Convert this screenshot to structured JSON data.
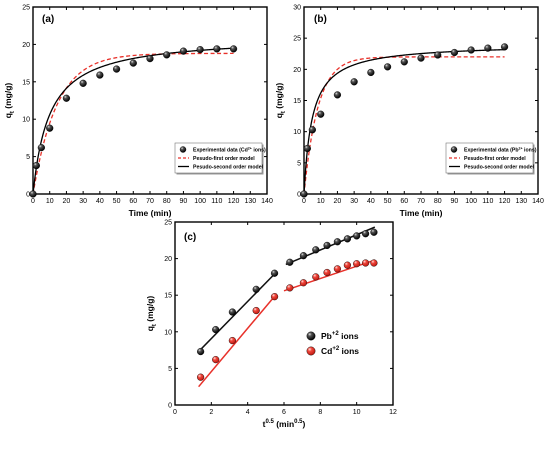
{
  "chart_data": [
    {
      "panel_label": "(a)",
      "type": "scatter",
      "xlabel": "Time (min)",
      "ylabel": "q_t (mg/g)",
      "ylabel_main": "q",
      "ylabel_sub": "t",
      "ylabel_unit": " (mg/g)",
      "xlim": [
        0,
        140
      ],
      "ylim": [
        0,
        25
      ],
      "xticks": [
        0,
        10,
        20,
        30,
        40,
        50,
        60,
        70,
        80,
        90,
        100,
        110,
        120,
        130,
        140
      ],
      "yticks": [
        0,
        5,
        10,
        15,
        20,
        25
      ],
      "legend_position": "bottom-right",
      "series": [
        {
          "name": "Experimental data (Cd2+ ions)",
          "name_main": "Experimental data (Cd",
          "name_sup": "2+",
          "name_tail": " ions)",
          "kind": "markers",
          "color": "#000000",
          "x": [
            0,
            2,
            5,
            10,
            20,
            30,
            40,
            50,
            60,
            70,
            80,
            90,
            100,
            110,
            120
          ],
          "y": [
            0,
            3.8,
            6.2,
            8.8,
            12.8,
            14.8,
            15.9,
            16.7,
            17.5,
            18.1,
            18.6,
            19.1,
            19.3,
            19.4,
            19.4
          ]
        },
        {
          "name": "Pesudo-first order model",
          "kind": "dashed",
          "color": "#e8312a",
          "qe": 18.8,
          "k1": 0.07
        },
        {
          "name": "Pesudo-second order model",
          "kind": "solid",
          "color": "#000000",
          "qe": 21.1,
          "k2": 0.0048
        }
      ]
    },
    {
      "panel_label": "(b)",
      "type": "scatter",
      "xlabel": "Time (min)",
      "ylabel": "q_t (mg/g)",
      "ylabel_main": "q",
      "ylabel_sub": "t",
      "ylabel_unit": " (mg/g)",
      "xlim": [
        0,
        140
      ],
      "ylim": [
        0,
        30
      ],
      "xticks": [
        0,
        10,
        20,
        30,
        40,
        50,
        60,
        70,
        80,
        90,
        100,
        110,
        120,
        130,
        140
      ],
      "yticks": [
        0,
        5,
        10,
        15,
        20,
        25,
        30
      ],
      "legend_position": "bottom-right",
      "series": [
        {
          "name": "Experimental data (Pb2+ ions)",
          "name_main": "Experimental data (Pb",
          "name_sup": "2+",
          "name_tail": " ions)",
          "kind": "markers",
          "color": "#000000",
          "x": [
            0,
            2,
            5,
            10,
            20,
            30,
            40,
            50,
            60,
            70,
            80,
            90,
            100,
            110,
            120
          ],
          "y": [
            0,
            7.3,
            10.3,
            12.8,
            15.9,
            18.0,
            19.5,
            20.4,
            21.2,
            21.8,
            22.3,
            22.7,
            23.1,
            23.4,
            23.6
          ]
        },
        {
          "name": "Pesudo-first order model",
          "kind": "dashed",
          "color": "#e8312a",
          "qe": 22.0,
          "k1": 0.12
        },
        {
          "name": "Pesudo-second order model",
          "kind": "solid",
          "color": "#000000",
          "qe": 24.1,
          "k2": 0.0085
        }
      ]
    },
    {
      "panel_label": "(c)",
      "type": "scatter",
      "xlabel": "t^0.5 (min^0.5)",
      "xlabel_a": "t",
      "xlabel_sup1": "0.5",
      "xlabel_b": " (min",
      "xlabel_sup2": "0.5",
      "xlabel_c": ")",
      "ylabel": "q_t (mg/g)",
      "ylabel_main": "q",
      "ylabel_sub": "t",
      "ylabel_unit": " (mg/g)",
      "xlim": [
        0,
        12
      ],
      "ylim": [
        0,
        25
      ],
      "xticks": [
        0,
        2,
        4,
        6,
        8,
        10,
        12
      ],
      "yticks": [
        0,
        5,
        10,
        15,
        20,
        25
      ],
      "legend_position": "bottom-right",
      "series": [
        {
          "name": "Pb+2 ions",
          "name_main": "Pb",
          "name_sup": "+2",
          "name_tail": " ions",
          "kind": "markers",
          "color": "#111111",
          "x": [
            1.41,
            2.24,
            3.16,
            4.47,
            5.48,
            6.32,
            7.07,
            7.75,
            8.37,
            8.94,
            9.49,
            10.0,
            10.49,
            10.95
          ],
          "y": [
            7.3,
            10.3,
            12.7,
            15.8,
            18.0,
            19.5,
            20.4,
            21.2,
            21.8,
            22.3,
            22.7,
            23.1,
            23.4,
            23.6
          ],
          "fits": [
            {
              "x": [
                1.3,
                5.6
              ],
              "y": [
                7.3,
                18.2
              ]
            },
            {
              "x": [
                6.1,
                11.0
              ],
              "y": [
                19.2,
                24.3
              ]
            }
          ]
        },
        {
          "name": "Cd+2 ions",
          "name_main": "Cd",
          "name_sup": "+2",
          "name_tail": " ions",
          "kind": "markers",
          "color": "#e8312a",
          "x": [
            1.41,
            2.24,
            3.16,
            4.47,
            5.48,
            6.32,
            7.07,
            7.75,
            8.37,
            8.94,
            9.49,
            10.0,
            10.49,
            10.95
          ],
          "y": [
            3.8,
            6.2,
            8.8,
            12.9,
            14.8,
            16.0,
            16.7,
            17.5,
            18.1,
            18.6,
            19.1,
            19.3,
            19.4,
            19.4
          ],
          "fits": [
            {
              "x": [
                1.3,
                5.6
              ],
              "y": [
                2.5,
                15.2
              ]
            },
            {
              "x": [
                6.0,
                11.0
              ],
              "y": [
                15.6,
                19.8
              ]
            }
          ]
        }
      ]
    }
  ]
}
